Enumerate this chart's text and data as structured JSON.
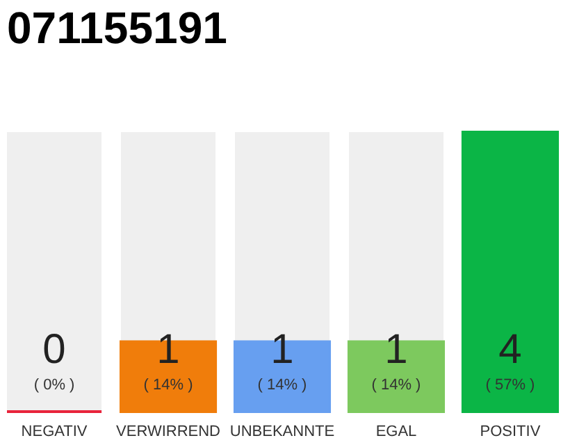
{
  "chart_data": {
    "type": "bar",
    "title": "071155191",
    "categories": [
      "NEGATIV",
      "VERWIRREND",
      "UNBEKANNTE",
      "EGAL",
      "POSITIV"
    ],
    "values": [
      0,
      1,
      1,
      1,
      4
    ],
    "colors": [
      "#e8243c",
      "#f07d0b",
      "#679ff0",
      "#7dc95e",
      "#0bb546"
    ],
    "ylim": [
      0,
      4
    ],
    "tick_labels": "x",
    "data_labels": true,
    "annotations": [
      "( 0% )",
      "( 14% )",
      "( 14% )",
      "( 14% )",
      "( 57% )"
    ],
    "grid": false
  }
}
